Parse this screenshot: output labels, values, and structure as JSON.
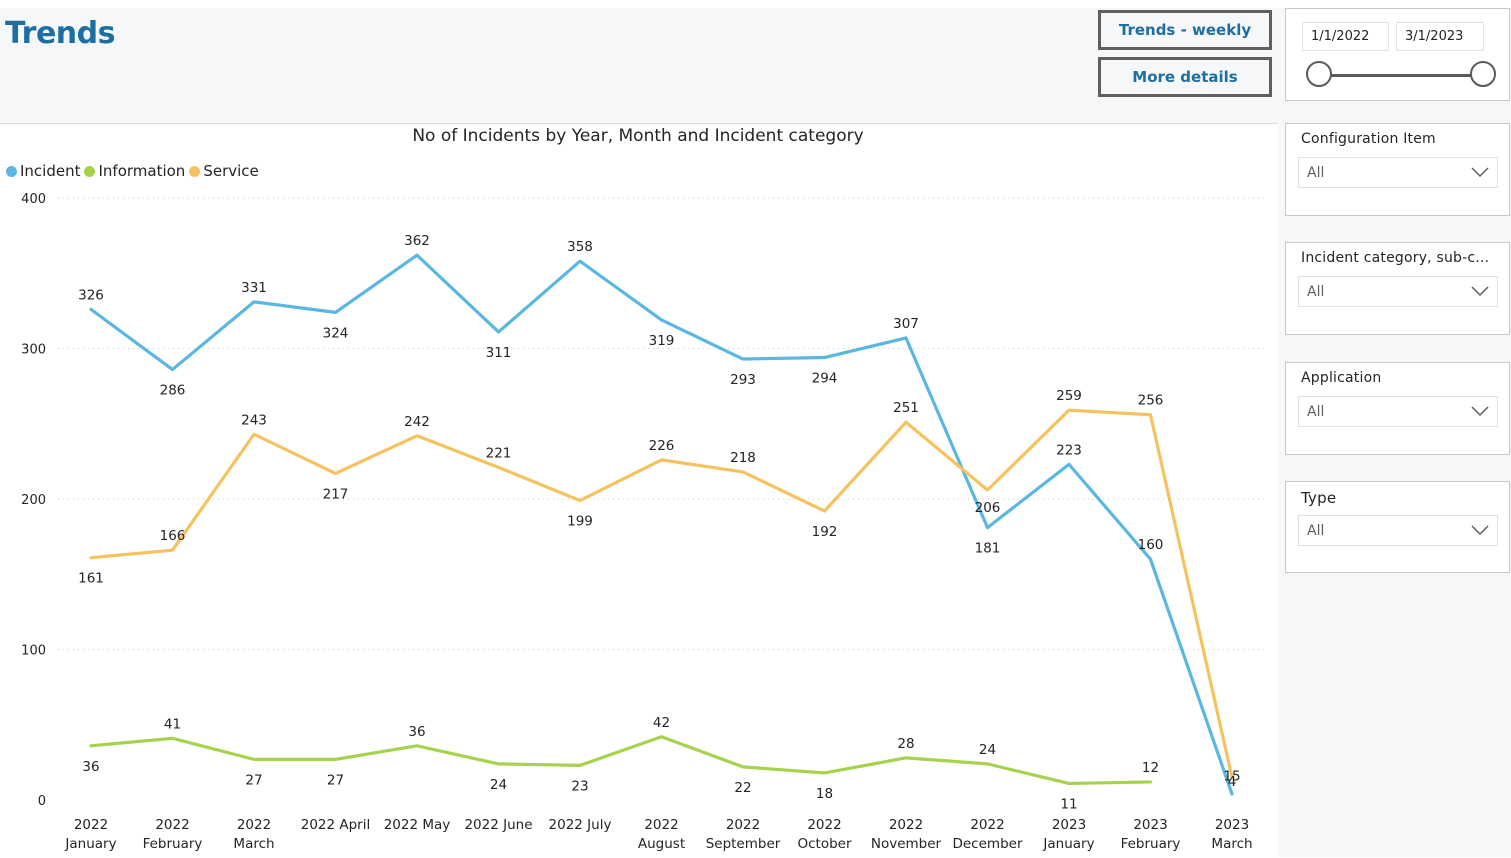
{
  "page": {
    "title": "Trends",
    "buttons": {
      "weekly": "Trends - weekly",
      "details": "More details"
    }
  },
  "date_slicer": {
    "start": "1/1/2022",
    "end": "3/1/2023"
  },
  "slicers": [
    {
      "title": "Configuration Item",
      "value": "All"
    },
    {
      "title": "Incident category, sub-c...",
      "value": "All"
    },
    {
      "title": "Application",
      "value": "All"
    },
    {
      "title": "Type",
      "value": "All"
    }
  ],
  "colors": {
    "Incident": "#5ab7e1",
    "Information": "#a6d24c",
    "Service": "#f5c25f",
    "accent": "#1d6ea1"
  },
  "chart_data": {
    "type": "line",
    "title": "No of Incidents by Year, Month and Incident category",
    "categories": [
      [
        "2022",
        "January"
      ],
      [
        "2022",
        "February"
      ],
      [
        "2022",
        "March"
      ],
      [
        "2022 April"
      ],
      [
        "2022 May"
      ],
      [
        "2022 June"
      ],
      [
        "2022 July"
      ],
      [
        "2022",
        "August"
      ],
      [
        "2022",
        "September"
      ],
      [
        "2022",
        "October"
      ],
      [
        "2022",
        "November"
      ],
      [
        "2022",
        "December"
      ],
      [
        "2023",
        "January"
      ],
      [
        "2023",
        "February"
      ],
      [
        "2023",
        "March"
      ]
    ],
    "ylim": [
      0,
      400
    ],
    "yticks": [
      0,
      100,
      200,
      300,
      400
    ],
    "grid": true,
    "legend_position": "top-left",
    "series": [
      {
        "name": "Incident",
        "values": [
          326,
          286,
          331,
          324,
          362,
          311,
          358,
          319,
          293,
          294,
          307,
          181,
          223,
          160,
          4
        ]
      },
      {
        "name": "Information",
        "values": [
          36,
          41,
          27,
          27,
          36,
          24,
          23,
          42,
          22,
          18,
          28,
          24,
          11,
          12,
          null
        ]
      },
      {
        "name": "Service",
        "values": [
          161,
          166,
          243,
          217,
          242,
          221,
          199,
          226,
          218,
          192,
          251,
          206,
          259,
          256,
          15
        ]
      }
    ]
  }
}
